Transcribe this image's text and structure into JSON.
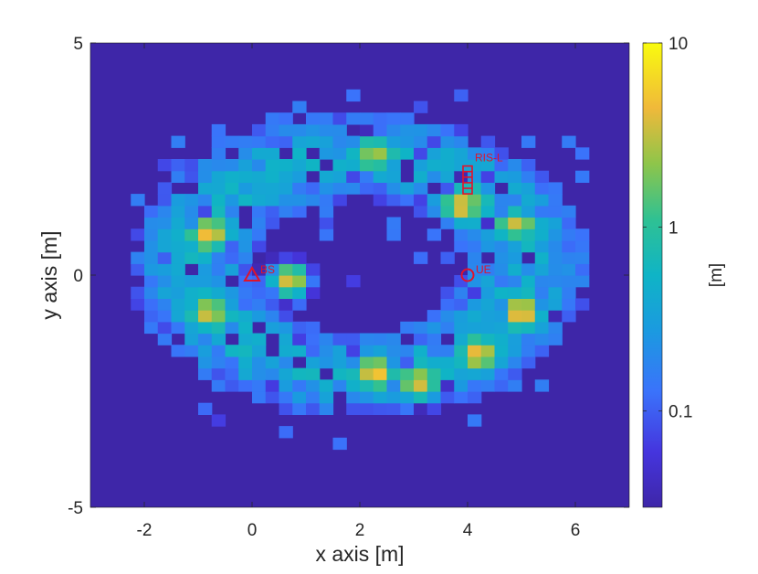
{
  "chart_data": {
    "type": "heatmap",
    "title": "",
    "xlabel": "x axis [m]",
    "ylabel": "y axis [m]",
    "xlim": [
      -3,
      7
    ],
    "ylim": [
      -5,
      5
    ],
    "x_ticks": [
      "-2",
      "0",
      "2",
      "4",
      "6"
    ],
    "x_tick_values": [
      -2,
      0,
      2,
      4,
      6
    ],
    "y_ticks": [
      "-5",
      "0",
      "5"
    ],
    "y_tick_values": [
      -5,
      0,
      5
    ],
    "colorbar": {
      "label": "[m]",
      "scale": "log",
      "range": [
        0.03,
        10
      ],
      "tick_labels": [
        "0.1",
        "1",
        "10"
      ],
      "tick_values": [
        0.1,
        1,
        10
      ],
      "colormap": "parula"
    },
    "field": {
      "description_units": "m",
      "ring_center": [
        2,
        0.2
      ],
      "ring_radius_x": 3.1,
      "ring_radius_y": 2.35,
      "hotspots": [
        {
          "x": -0.8,
          "y": 0.9,
          "value": 4.5
        },
        {
          "x": -0.8,
          "y": -0.8,
          "value": 3.5
        },
        {
          "x": 0.7,
          "y": -0.1,
          "value": 4.0
        },
        {
          "x": 2.3,
          "y": -2.1,
          "value": 5.0
        },
        {
          "x": 3.1,
          "y": -2.3,
          "value": 3.5
        },
        {
          "x": 3.9,
          "y": 1.5,
          "value": 4.5
        },
        {
          "x": 4.2,
          "y": -1.7,
          "value": 4.5
        },
        {
          "x": 5.0,
          "y": -0.8,
          "value": 5.0
        },
        {
          "x": 4.9,
          "y": 1.1,
          "value": 3.0
        },
        {
          "x": 2.3,
          "y": 2.6,
          "value": 2.5
        }
      ]
    },
    "markers": [
      {
        "label": "BS",
        "x": 0,
        "y": 0,
        "shape": "triangle",
        "color": "#e0142b"
      },
      {
        "label": "UE",
        "x": 4,
        "y": 0,
        "shape": "circle",
        "color": "#e0142b"
      },
      {
        "label": "RIS-L",
        "x": 4,
        "y": 2.0,
        "shape": "ris-array",
        "color": "#e0142b"
      }
    ],
    "colors": {
      "background_low": "#3e26a8",
      "marker": "#e0142b"
    }
  }
}
